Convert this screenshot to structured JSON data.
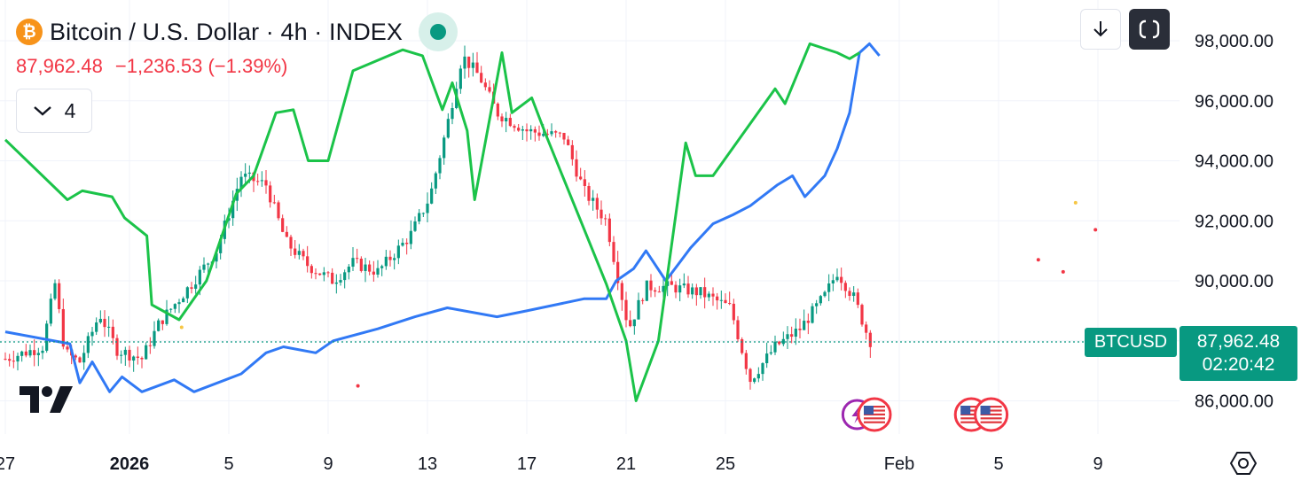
{
  "header": {
    "coin_glyph": "₿",
    "symbol_title": "Bitcoin / U.S. Dollar · 4h · INDEX",
    "last_price": "87,962.48",
    "change": "−1,236.53 (−1.39%)",
    "indicator_count": "4",
    "status_color": "#089981"
  },
  "price_tag": {
    "symbol": "BTCUSD",
    "price": "87,962.48",
    "countdown": "02:20:42"
  },
  "icons": {
    "download": "download-arrow-icon",
    "fullscreen": "fullscreen-icon",
    "settings": "settings-hexagon-icon",
    "logo": "tradingview-logo-icon",
    "coin": "bitcoin-coin-icon"
  },
  "colors": {
    "up": "#089981",
    "down": "#f23645",
    "blue_line": "#3179f5",
    "green_line": "#1bc349",
    "grid": "#f0f3fa",
    "text": "#131722"
  },
  "chart_data": {
    "type": "candlestick",
    "y_axis": {
      "ticks": [
        "86,000.00",
        "88,000.00",
        "90,000.00",
        "92,000.00",
        "94,000.00",
        "96,000.00",
        "98,000.00"
      ],
      "tick_values": [
        86000,
        88000,
        90000,
        92000,
        94000,
        96000,
        98000
      ]
    },
    "x_axis": {
      "ticks": [
        {
          "label": "27",
          "day": 27
        },
        {
          "label": "2026",
          "day": 32,
          "bold": true
        },
        {
          "label": "5",
          "day": 36
        },
        {
          "label": "9",
          "day": 40
        },
        {
          "label": "13",
          "day": 44
        },
        {
          "label": "17",
          "day": 48
        },
        {
          "label": "21",
          "day": 52
        },
        {
          "label": "25",
          "day": 56
        },
        {
          "label": "Feb",
          "day": 63
        },
        {
          "label": "5",
          "day": 67
        },
        {
          "label": "9",
          "day": 71
        }
      ]
    },
    "last_price_value": 87962.48,
    "price_path": [
      [
        27,
        87400
      ],
      [
        28.5,
        87800
      ],
      [
        29.0,
        89900
      ],
      [
        29.4,
        87600
      ],
      [
        30.0,
        87300
      ],
      [
        30.8,
        88900
      ],
      [
        31.5,
        87700
      ],
      [
        32.5,
        87400
      ],
      [
        33.2,
        88600
      ],
      [
        34.5,
        89900
      ],
      [
        35.5,
        91000
      ],
      [
        36.5,
        93500
      ],
      [
        37.5,
        93200
      ],
      [
        38.3,
        91300
      ],
      [
        39.2,
        90500
      ],
      [
        40.2,
        90000
      ],
      [
        41.0,
        90600
      ],
      [
        42.0,
        90300
      ],
      [
        43.3,
        91500
      ],
      [
        44.1,
        92800
      ],
      [
        44.8,
        95200
      ],
      [
        45.4,
        97500
      ],
      [
        46.1,
        96800
      ],
      [
        46.8,
        95600
      ],
      [
        48.0,
        95000
      ],
      [
        49.5,
        94800
      ],
      [
        50.3,
        93000
      ],
      [
        51.2,
        92000
      ],
      [
        52.1,
        88400
      ],
      [
        52.8,
        89800
      ],
      [
        53.8,
        89800
      ],
      [
        55.0,
        89600
      ],
      [
        56.2,
        89100
      ],
      [
        57.0,
        86700
      ],
      [
        58.0,
        87800
      ],
      [
        59.0,
        88400
      ],
      [
        60.0,
        89500
      ],
      [
        60.5,
        90300
      ],
      [
        61.2,
        89400
      ],
      [
        61.8,
        88000
      ]
    ],
    "series": [
      {
        "color": "#3179f5",
        "points": [
          [
            27,
            88300
          ],
          [
            29.6,
            87900
          ],
          [
            30.0,
            86600
          ],
          [
            30.5,
            87300
          ],
          [
            31.2,
            86300
          ],
          [
            31.7,
            86800
          ],
          [
            32.5,
            86300
          ],
          [
            33.8,
            86700
          ],
          [
            34.6,
            86300
          ],
          [
            36.5,
            86900
          ],
          [
            37.5,
            87600
          ],
          [
            38.2,
            87800
          ],
          [
            39.5,
            87600
          ],
          [
            40.2,
            88000
          ],
          [
            42.0,
            88400
          ],
          [
            43.5,
            88800
          ],
          [
            44.8,
            89100
          ],
          [
            46.8,
            88800
          ],
          [
            48.0,
            89000
          ],
          [
            50.3,
            89400
          ],
          [
            51.2,
            89400
          ],
          [
            51.6,
            90000
          ],
          [
            52.3,
            90400
          ],
          [
            52.8,
            91000
          ],
          [
            53.6,
            90000
          ],
          [
            54.6,
            91100
          ],
          [
            55.5,
            91900
          ],
          [
            56.3,
            92200
          ],
          [
            57.0,
            92500
          ],
          [
            58.1,
            93200
          ],
          [
            58.7,
            93500
          ],
          [
            59.2,
            92800
          ],
          [
            60.0,
            93500
          ],
          [
            60.5,
            94400
          ],
          [
            61.0,
            95600
          ],
          [
            61.4,
            97600
          ],
          [
            61.8,
            97900
          ],
          [
            62.2,
            97500
          ]
        ]
      },
      {
        "color": "#1bc349",
        "points": [
          [
            27,
            94700
          ],
          [
            29.5,
            92700
          ],
          [
            30.1,
            93000
          ],
          [
            31.3,
            92800
          ],
          [
            31.8,
            92100
          ],
          [
            32.7,
            91500
          ],
          [
            32.9,
            89200
          ],
          [
            34.0,
            88700
          ],
          [
            35.1,
            90000
          ],
          [
            36.3,
            92900
          ],
          [
            37.0,
            93500
          ],
          [
            37.9,
            95600
          ],
          [
            38.6,
            95700
          ],
          [
            39.2,
            94000
          ],
          [
            40.0,
            94000
          ],
          [
            41.0,
            97000
          ],
          [
            43.0,
            97700
          ],
          [
            43.8,
            97500
          ],
          [
            44.6,
            95700
          ],
          [
            45.0,
            96600
          ],
          [
            45.6,
            95000
          ],
          [
            45.9,
            92700
          ],
          [
            47.0,
            97600
          ],
          [
            47.4,
            95600
          ],
          [
            48.2,
            96100
          ],
          [
            48.8,
            94800
          ],
          [
            51.2,
            89900
          ],
          [
            52.0,
            88000
          ],
          [
            52.4,
            86000
          ],
          [
            53.3,
            88000
          ],
          [
            54.4,
            94600
          ],
          [
            54.8,
            93500
          ],
          [
            55.5,
            93500
          ],
          [
            58.0,
            96400
          ],
          [
            58.4,
            95900
          ],
          [
            59.4,
            97900
          ],
          [
            60.5,
            97600
          ],
          [
            61.0,
            97400
          ],
          [
            61.4,
            97600
          ]
        ]
      }
    ],
    "markers": [
      {
        "day": 34.1,
        "value": 88450,
        "color": "#f6c644"
      },
      {
        "day": 41.2,
        "value": 86500,
        "color": "#f23645"
      },
      {
        "day": 68.6,
        "value": 90700,
        "color": "#f23645"
      },
      {
        "day": 69.6,
        "value": 90300,
        "color": "#f23645"
      },
      {
        "day": 70.1,
        "value": 92600,
        "color": "#f6c644"
      },
      {
        "day": 70.9,
        "value": 91700,
        "color": "#f23645"
      }
    ],
    "events": [
      {
        "day": 61.3,
        "kind": "flash-event-icon"
      },
      {
        "day": 62.0,
        "kind": "us-flag-event-icon"
      },
      {
        "day": 65.9,
        "kind": "us-flag-event-icon"
      },
      {
        "day": 66.7,
        "kind": "us-flag-event-icon"
      }
    ]
  }
}
